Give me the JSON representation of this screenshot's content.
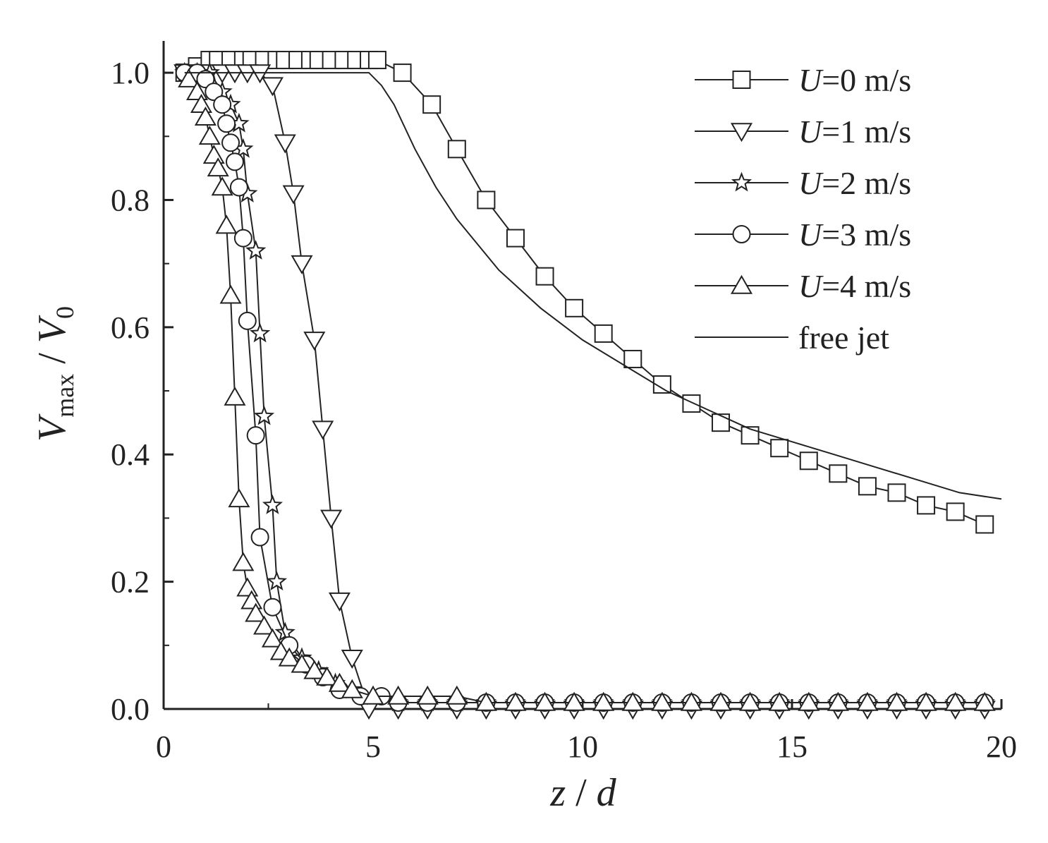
{
  "chart_data": {
    "type": "line",
    "xlabel": {
      "var1": "z",
      "sep": " / ",
      "var2": "d"
    },
    "ylabel": {
      "var1": "V",
      "sub1": "max",
      "sep": " / ",
      "var2": "V",
      "sub2": "0"
    },
    "xlim": [
      0,
      20
    ],
    "ylim": [
      0,
      1.05
    ],
    "xticks": [
      0,
      5,
      10,
      15,
      20
    ],
    "yticks": [
      0.0,
      0.2,
      0.4,
      0.6,
      0.8,
      1.0
    ],
    "ytick_labels": [
      "0.0",
      "0.2",
      "0.4",
      "0.6",
      "0.8",
      "1.0"
    ],
    "legend_position": "top-right",
    "grid": false,
    "series": [
      {
        "name": "U=0 m/s",
        "legend_var": "U",
        "legend_rest": "=0 m/s",
        "marker": "square",
        "x": [
          0.5,
          0.8,
          1.1,
          1.3,
          1.6,
          1.9,
          2.1,
          2.4,
          2.7,
          2.9,
          3.2,
          3.5,
          3.7,
          4.0,
          4.3,
          4.6,
          4.9,
          5.1,
          5.7,
          6.4,
          7.0,
          7.7,
          8.4,
          9.1,
          9.8,
          10.5,
          11.2,
          11.9,
          12.6,
          13.3,
          14.0,
          14.7,
          15.4,
          16.1,
          16.8,
          17.5,
          18.2,
          18.9,
          19.6
        ],
        "y": [
          1.0,
          1.01,
          1.02,
          1.02,
          1.02,
          1.02,
          1.02,
          1.02,
          1.02,
          1.02,
          1.02,
          1.02,
          1.02,
          1.02,
          1.02,
          1.02,
          1.02,
          1.02,
          1.0,
          0.95,
          0.88,
          0.8,
          0.74,
          0.68,
          0.63,
          0.59,
          0.55,
          0.51,
          0.48,
          0.45,
          0.43,
          0.41,
          0.39,
          0.37,
          0.35,
          0.34,
          0.32,
          0.31,
          0.29
        ]
      },
      {
        "name": "U=1 m/s",
        "legend_var": "U",
        "legend_rest": "=1 m/s",
        "marker": "triangle-down",
        "x": [
          0.5,
          0.8,
          1.1,
          1.4,
          1.7,
          2.0,
          2.3,
          2.6,
          2.9,
          3.1,
          3.3,
          3.6,
          3.8,
          4.0,
          4.2,
          4.5,
          4.9,
          5.6,
          6.3,
          7.0,
          7.7,
          8.4,
          9.1,
          9.8,
          10.5,
          11.2,
          11.9,
          12.6,
          13.3,
          14.0,
          14.7,
          15.4,
          16.1,
          16.8,
          17.5,
          18.2,
          18.9,
          19.6
        ],
        "y": [
          1.0,
          1.0,
          1.0,
          1.0,
          1.0,
          1.0,
          1.0,
          0.98,
          0.89,
          0.81,
          0.7,
          0.58,
          0.44,
          0.3,
          0.17,
          0.08,
          0.0,
          0.0,
          0.0,
          0.0,
          0.0,
          0.0,
          0.0,
          0.0,
          0.0,
          0.0,
          0.0,
          0.0,
          0.0,
          0.0,
          0.0,
          0.0,
          0.0,
          0.0,
          0.0,
          0.0,
          0.0,
          0.0
        ]
      },
      {
        "name": "U=2 m/s",
        "legend_var": "U",
        "legend_rest": "=2 m/s",
        "marker": "star",
        "x": [
          0.5,
          0.8,
          1.1,
          1.4,
          1.6,
          1.8,
          1.9,
          2.0,
          2.2,
          2.3,
          2.4,
          2.6,
          2.7,
          2.9,
          3.3,
          3.7,
          4.1,
          4.5,
          5.0,
          5.6,
          6.3,
          7.0,
          7.7,
          8.4,
          9.1,
          9.8,
          10.5,
          11.2,
          11.9,
          12.6,
          13.3,
          14.0,
          14.7,
          15.4,
          16.1,
          16.8,
          17.5,
          18.2,
          18.9,
          19.6
        ],
        "y": [
          1.0,
          1.0,
          1.0,
          0.97,
          0.95,
          0.92,
          0.88,
          0.81,
          0.72,
          0.59,
          0.46,
          0.32,
          0.2,
          0.12,
          0.08,
          0.06,
          0.04,
          0.03,
          0.02,
          0.01,
          0.01,
          0.01,
          0.01,
          0.01,
          0.01,
          0.01,
          0.01,
          0.01,
          0.01,
          0.01,
          0.01,
          0.01,
          0.01,
          0.01,
          0.01,
          0.01,
          0.01,
          0.01,
          0.01,
          0.01
        ]
      },
      {
        "name": "U=3 m/s",
        "legend_var": "U",
        "legend_rest": "=3 m/s",
        "marker": "circle",
        "x": [
          0.5,
          0.8,
          1.0,
          1.2,
          1.4,
          1.5,
          1.6,
          1.7,
          1.8,
          1.9,
          2.0,
          2.2,
          2.3,
          2.6,
          3.0,
          3.4,
          3.8,
          4.2,
          4.7,
          5.2,
          5.6,
          6.3,
          7.0,
          7.7,
          8.4,
          9.1,
          9.8,
          10.5,
          11.2,
          11.9,
          12.6,
          13.3,
          14.0,
          14.7,
          15.4,
          16.1,
          16.8,
          17.5,
          18.2,
          18.9,
          19.6
        ],
        "y": [
          1.0,
          1.0,
          0.99,
          0.97,
          0.95,
          0.92,
          0.89,
          0.86,
          0.82,
          0.74,
          0.61,
          0.43,
          0.27,
          0.16,
          0.1,
          0.07,
          0.05,
          0.03,
          0.02,
          0.02,
          0.01,
          0.01,
          0.01,
          0.01,
          0.01,
          0.01,
          0.01,
          0.01,
          0.01,
          0.01,
          0.01,
          0.01,
          0.01,
          0.01,
          0.01,
          0.01,
          0.01,
          0.01,
          0.01,
          0.01,
          0.01
        ]
      },
      {
        "name": "U=4 m/s",
        "legend_var": "U",
        "legend_rest": "=4 m/s",
        "marker": "triangle-up",
        "x": [
          0.6,
          0.8,
          0.9,
          1.0,
          1.1,
          1.2,
          1.3,
          1.4,
          1.5,
          1.6,
          1.7,
          1.8,
          1.9,
          2.0,
          2.1,
          2.2,
          2.4,
          2.6,
          2.8,
          3.0,
          3.3,
          3.6,
          3.9,
          4.2,
          4.5,
          5.0,
          5.6,
          6.3,
          7.0,
          7.7,
          8.4,
          9.1,
          9.8,
          10.5,
          11.2,
          11.9,
          12.6,
          13.3,
          14.0,
          14.7,
          15.4,
          16.1,
          16.8,
          17.5,
          18.2,
          18.9,
          19.6
        ],
        "y": [
          0.99,
          0.97,
          0.95,
          0.93,
          0.9,
          0.87,
          0.85,
          0.82,
          0.76,
          0.65,
          0.49,
          0.33,
          0.23,
          0.19,
          0.17,
          0.15,
          0.13,
          0.11,
          0.09,
          0.08,
          0.07,
          0.06,
          0.05,
          0.04,
          0.03,
          0.02,
          0.02,
          0.02,
          0.02,
          0.01,
          0.01,
          0.01,
          0.01,
          0.01,
          0.01,
          0.01,
          0.01,
          0.01,
          0.01,
          0.01,
          0.01,
          0.01,
          0.01,
          0.01,
          0.01,
          0.01,
          0.01
        ]
      },
      {
        "name": "free jet",
        "legend_var": "",
        "legend_rest": "free jet",
        "marker": "none",
        "x": [
          0.5,
          1.0,
          2.0,
          3.0,
          4.0,
          4.9,
          5.2,
          5.5,
          6.0,
          6.5,
          7.0,
          7.5,
          8.0,
          9.0,
          10.0,
          11.0,
          12.0,
          13.0,
          14.0,
          15.0,
          16.0,
          17.0,
          18.0,
          19.0,
          20.0
        ],
        "y": [
          1.0,
          1.0,
          1.0,
          1.0,
          1.0,
          1.0,
          0.98,
          0.95,
          0.88,
          0.82,
          0.77,
          0.73,
          0.69,
          0.63,
          0.58,
          0.54,
          0.5,
          0.47,
          0.44,
          0.42,
          0.4,
          0.38,
          0.36,
          0.34,
          0.33
        ]
      }
    ]
  }
}
